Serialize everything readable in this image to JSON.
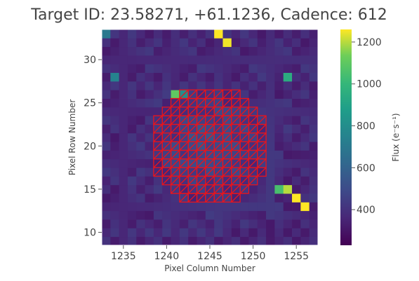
{
  "chart_data": {
    "type": "heatmap",
    "title": "Target ID: 23.58271, +61.1236, Cadence: 612",
    "xlabel": "Pixel Column Number",
    "ylabel": "Pixel Row Number",
    "colorbar_label": "Flux (e⁻s⁻¹)",
    "xlim": [
      1232.5,
      1257.5
    ],
    "ylim": [
      8.5,
      33.5
    ],
    "x_ticks": [
      1235,
      1240,
      1245,
      1250,
      1255
    ],
    "y_ticks": [
      10,
      15,
      20,
      25,
      30
    ],
    "colorbar_range": [
      230,
      1260
    ],
    "colorbar_ticks": [
      400,
      600,
      800,
      1000,
      1200
    ],
    "colormap": "viridis",
    "grid": false,
    "aperture_color": "#e8141c",
    "aperture_center": [
      1245,
      20
    ],
    "aperture_radius_pixels": 6.9,
    "sources": [
      {
        "column": 1246,
        "row": 33,
        "flux": 1260
      },
      {
        "column": 1247,
        "row": 32,
        "flux": 1250
      },
      {
        "column": 1255,
        "row": 14,
        "flux": 1260
      },
      {
        "column": 1256,
        "row": 13,
        "flux": 1260
      },
      {
        "column": 1254,
        "row": 15,
        "flux": 1200
      },
      {
        "column": 1253,
        "row": 15,
        "flux": 1050
      },
      {
        "column": 1241,
        "row": 26,
        "flux": 1100
      },
      {
        "column": 1242,
        "row": 26,
        "flux": 800
      },
      {
        "column": 1254,
        "row": 28,
        "flux": 950
      },
      {
        "column": 1234,
        "row": 28,
        "flux": 750
      },
      {
        "column": 1233,
        "row": 33,
        "flux": 700
      }
    ]
  }
}
